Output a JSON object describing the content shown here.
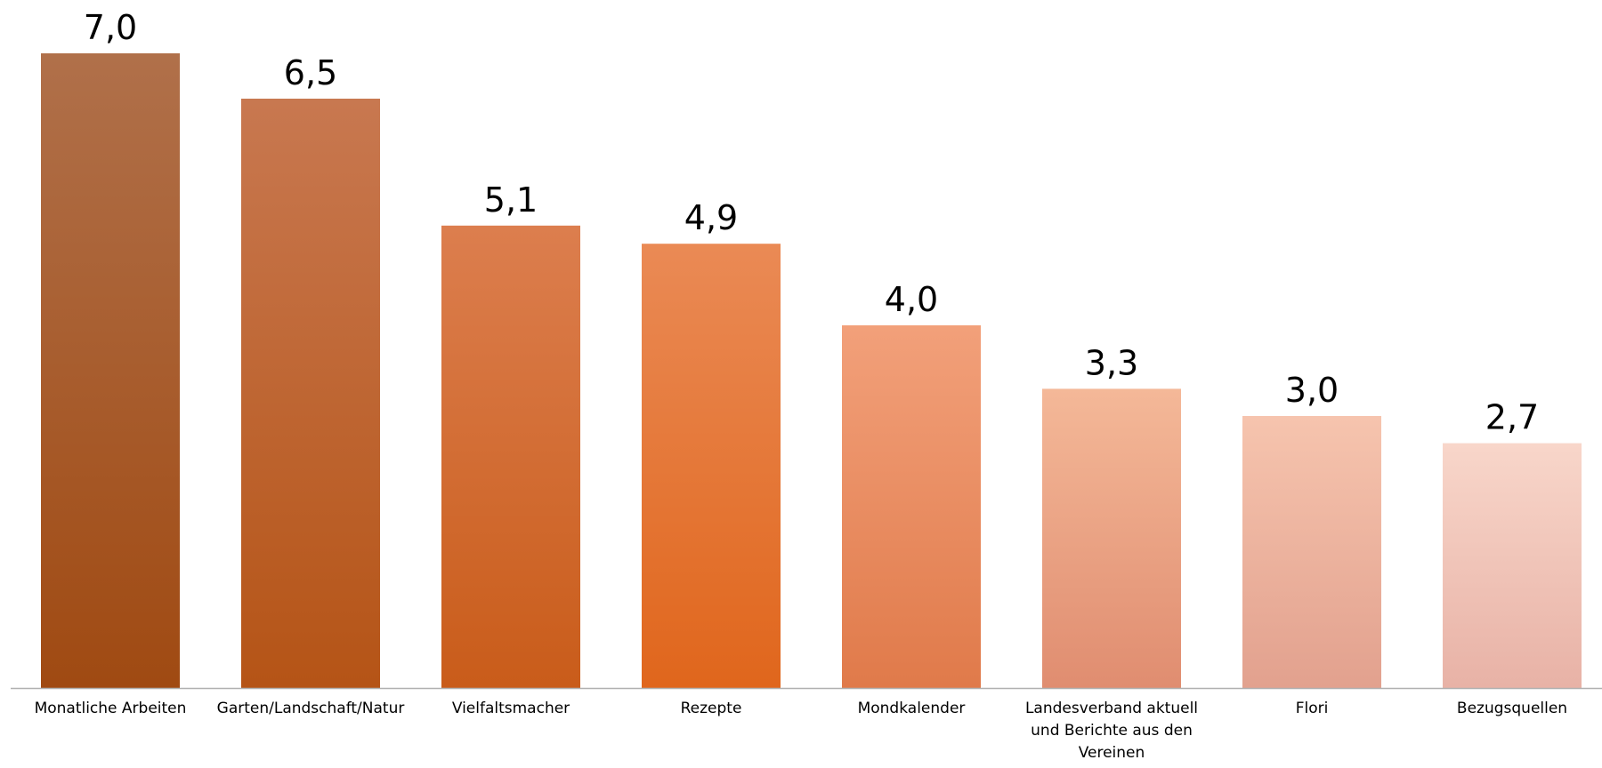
{
  "chart_data": {
    "type": "bar",
    "title": "",
    "xlabel": "",
    "ylabel": "",
    "categories": [
      "Monatliche Arbeiten",
      "Garten/Landschaft/Natur",
      "Vielfaltsmacher",
      "Rezepte",
      "Mondkalender",
      "Landesverband aktuell und Berichte aus den Vereinen",
      "Flori",
      "Bezugsquellen"
    ],
    "category_lines": [
      [
        "Monatliche Arbeiten"
      ],
      [
        "Garten/Landschaft/Natur"
      ],
      [
        "Vielfaltsmacher"
      ],
      [
        "Rezepte"
      ],
      [
        "Mondkalender"
      ],
      [
        "Landesverband aktuell",
        "und Berichte aus den",
        "Vereinen"
      ],
      [
        "Flori"
      ],
      [
        "Bezugsquellen"
      ]
    ],
    "values": [
      7.0,
      6.5,
      5.1,
      4.9,
      4.0,
      3.3,
      3.0,
      2.7
    ],
    "data_labels": [
      "7,0",
      "6,5",
      "5,1",
      "4,9",
      "4,0",
      "3,3",
      "3,0",
      "2,7"
    ],
    "ylim": [
      0,
      7
    ],
    "grid": false,
    "legend": "none",
    "colors": {
      "bars": [
        [
          "#b0704a",
          "#a04a12"
        ],
        [
          "#c87850",
          "#b55416"
        ],
        [
          "#dc7e4e",
          "#c95c1a"
        ],
        [
          "#ea8a55",
          "#e0661c"
        ],
        [
          "#f2a07a",
          "#e07a4a"
        ],
        [
          "#f4b898",
          "#e08d70"
        ],
        [
          "#f6c4ae",
          "#e2a18e"
        ],
        [
          "#f8d6ca",
          "#e8b2a6"
        ]
      ],
      "axis": "#b0b0b0"
    }
  }
}
